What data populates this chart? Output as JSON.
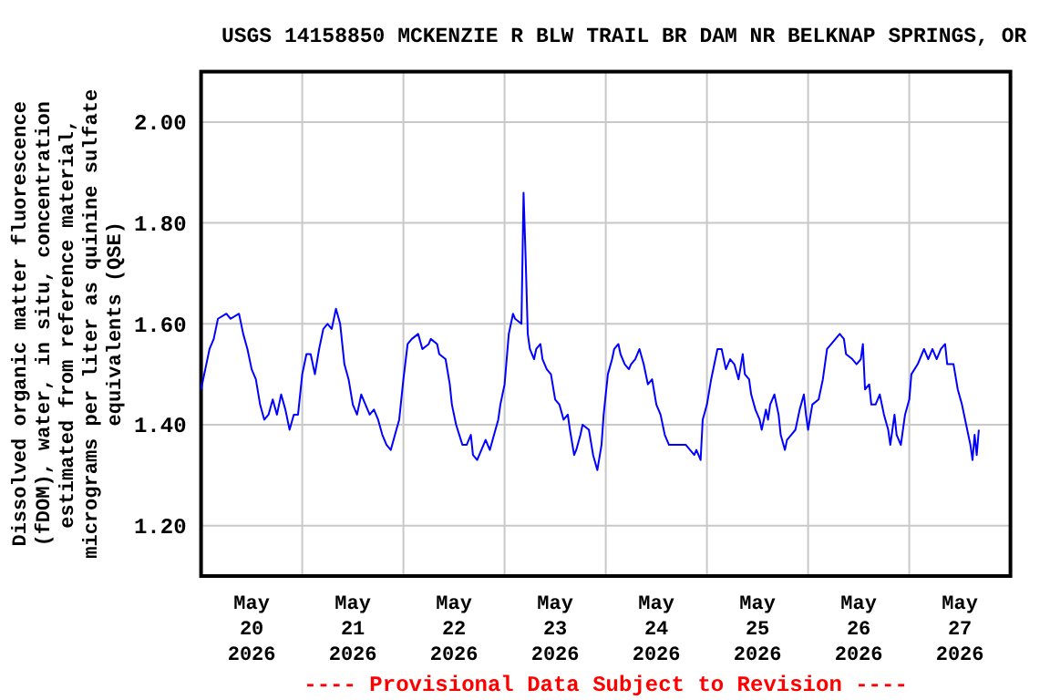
{
  "chart_data": {
    "type": "line",
    "title": "USGS 14158850 MCKENZIE R BLW TRAIL BR DAM NR BELKNAP SPRINGS, OR",
    "ylabel": "Dissolved organic matter fluorescence\n(fDOM), water, in situ, concentration\nestimated from reference material,\nmicrograms per liter as quinine sulfate\nequivalents (QSE)",
    "annotations": [
      "---- Provisional Data Subject to Revision ----"
    ],
    "xlim": [
      "2026-05-20",
      "2026-05-28"
    ],
    "xticks": [
      {
        "value": "2026-05-20T12:00",
        "label": "May\n20\n2026"
      },
      {
        "value": "2026-05-21",
        "label": null
      },
      {
        "value": "2026-05-21T12:00",
        "label": "May\n21\n2026"
      },
      {
        "value": "2026-05-22",
        "label": null
      },
      {
        "value": "2026-05-22T12:00",
        "label": "May\n22\n2026"
      },
      {
        "value": "2026-05-23",
        "label": null
      },
      {
        "value": "2026-05-23T12:00",
        "label": "May\n23\n2026"
      },
      {
        "value": "2026-05-24",
        "label": null
      },
      {
        "value": "2026-05-24T12:00",
        "label": "May\n24\n2026"
      },
      {
        "value": "2026-05-25",
        "label": null
      },
      {
        "value": "2026-05-25T12:00",
        "label": "May\n25\n2026"
      },
      {
        "value": "2026-05-26",
        "label": null
      },
      {
        "value": "2026-05-26T12:00",
        "label": "May\n26\n2026"
      },
      {
        "value": "2026-05-27",
        "label": null
      },
      {
        "value": "2026-05-27T12:00",
        "label": "May\n27\n2026"
      }
    ],
    "ylim": [
      1.1,
      2.1
    ],
    "yticks": [
      {
        "value": 1.2,
        "label": "1.20"
      },
      {
        "value": 1.4,
        "label": "1.40"
      },
      {
        "value": 1.6,
        "label": "1.60"
      },
      {
        "value": 1.8,
        "label": "1.80"
      },
      {
        "value": 2.0,
        "label": "2.00"
      }
    ],
    "grid": true,
    "marker": "none",
    "line_style": "solid",
    "x": [
      "2026-05-20T00:00",
      "2026-05-20T01:00",
      "2026-05-20T02:00",
      "2026-05-20T03:00",
      "2026-05-20T04:00",
      "2026-05-20T06:00",
      "2026-05-20T07:00",
      "2026-05-20T09:00",
      "2026-05-20T10:00",
      "2026-05-20T11:00",
      "2026-05-20T12:00",
      "2026-05-20T13:00",
      "2026-05-20T14:00",
      "2026-05-20T15:00",
      "2026-05-20T16:00",
      "2026-05-20T17:00",
      "2026-05-20T18:00",
      "2026-05-20T19:00",
      "2026-05-20T20:00",
      "2026-05-20T21:00",
      "2026-05-20T22:00",
      "2026-05-20T23:00",
      "2026-05-21T00:00",
      "2026-05-21T01:00",
      "2026-05-21T02:00",
      "2026-05-21T03:00",
      "2026-05-21T04:00",
      "2026-05-21T05:00",
      "2026-05-21T06:00",
      "2026-05-21T07:00",
      "2026-05-21T08:00",
      "2026-05-21T09:00",
      "2026-05-21T10:00",
      "2026-05-21T11:00",
      "2026-05-21T12:00",
      "2026-05-21T13:00",
      "2026-05-21T14:00",
      "2026-05-21T15:00",
      "2026-05-21T16:00",
      "2026-05-21T17:00",
      "2026-05-21T18:00",
      "2026-05-21T19:00",
      "2026-05-21T20:00",
      "2026-05-21T21:00",
      "2026-05-21T22:00",
      "2026-05-21T23:00",
      "2026-05-22T00:00",
      "2026-05-22T01:00",
      "2026-05-22T02:00",
      "2026-05-22T03:30",
      "2026-05-22T04:30",
      "2026-05-22T06:00",
      "2026-05-22T06:30",
      "2026-05-22T08:00",
      "2026-05-22T08:30",
      "2026-05-22T10:00",
      "2026-05-22T11:00",
      "2026-05-22T11:30",
      "2026-05-22T12:30",
      "2026-05-22T14:00",
      "2026-05-22T15:00",
      "2026-05-22T16:00",
      "2026-05-22T16:30",
      "2026-05-22T17:30",
      "2026-05-22T18:30",
      "2026-05-22T19:30",
      "2026-05-22T20:30",
      "2026-05-22T21:30",
      "2026-05-22T22:30",
      "2026-05-22T23:00",
      "2026-05-23T00:00",
      "2026-05-23T00:30",
      "2026-05-23T01:00",
      "2026-05-23T02:00",
      "2026-05-23T02:30",
      "2026-05-23T04:00",
      "2026-05-23T04:30",
      "2026-05-23T05:00",
      "2026-05-23T05:30",
      "2026-05-23T06:00",
      "2026-05-23T07:00",
      "2026-05-23T07:30",
      "2026-05-23T08:30",
      "2026-05-23T09:00",
      "2026-05-23T10:00",
      "2026-05-23T11:00",
      "2026-05-23T12:00",
      "2026-05-23T13:00",
      "2026-05-23T14:00",
      "2026-05-23T15:00",
      "2026-05-23T15:30",
      "2026-05-23T16:30",
      "2026-05-23T17:00",
      "2026-05-23T18:00",
      "2026-05-23T18:30",
      "2026-05-23T20:00",
      "2026-05-23T21:00",
      "2026-05-23T22:00",
      "2026-05-23T23:00",
      "2026-05-23T23:30",
      "2026-05-24T00:30",
      "2026-05-24T01:30",
      "2026-05-24T02:00",
      "2026-05-24T03:00",
      "2026-05-24T03:30",
      "2026-05-24T04:30",
      "2026-05-24T05:30",
      "2026-05-24T06:00",
      "2026-05-24T07:00",
      "2026-05-24T08:00",
      "2026-05-24T09:00",
      "2026-05-24T10:00",
      "2026-05-24T11:00",
      "2026-05-24T12:00",
      "2026-05-24T13:00",
      "2026-05-24T14:00",
      "2026-05-24T15:00",
      "2026-05-24T16:00",
      "2026-05-24T19:00",
      "2026-05-24T20:00",
      "2026-05-24T21:00",
      "2026-05-24T21:30",
      "2026-05-24T22:30",
      "2026-05-24T23:00",
      "2026-05-25T00:00",
      "2026-05-25T01:00",
      "2026-05-25T02:00",
      "2026-05-25T02:30",
      "2026-05-25T03:30",
      "2026-05-25T04:30",
      "2026-05-25T05:30",
      "2026-05-25T06:30",
      "2026-05-25T07:30",
      "2026-05-25T08:30",
      "2026-05-25T09:00",
      "2026-05-25T10:00",
      "2026-05-25T10:30",
      "2026-05-25T11:30",
      "2026-05-25T12:30",
      "2026-05-25T13:00",
      "2026-05-25T14:00",
      "2026-05-25T14:30",
      "2026-05-25T15:00",
      "2026-05-25T16:00",
      "2026-05-25T17:00",
      "2026-05-25T17:30",
      "2026-05-25T18:30",
      "2026-05-25T19:00",
      "2026-05-25T20:00",
      "2026-05-25T21:00",
      "2026-05-25T22:00",
      "2026-05-25T23:00",
      "2026-05-25T23:30",
      "2026-05-26T00:00",
      "2026-05-26T01:00",
      "2026-05-26T02:30",
      "2026-05-26T03:30",
      "2026-05-26T04:30",
      "2026-05-26T05:30",
      "2026-05-26T06:30",
      "2026-05-26T07:30",
      "2026-05-26T08:30",
      "2026-05-26T09:00",
      "2026-05-26T10:30",
      "2026-05-26T11:30",
      "2026-05-26T12:30",
      "2026-05-26T13:00",
      "2026-05-26T13:30",
      "2026-05-26T14:30",
      "2026-05-26T15:00",
      "2026-05-26T16:00",
      "2026-05-26T17:00",
      "2026-05-26T18:00",
      "2026-05-26T19:00",
      "2026-05-26T19:30",
      "2026-05-26T20:30",
      "2026-05-26T21:00",
      "2026-05-26T22:00",
      "2026-05-26T23:00",
      "2026-05-27T00:00",
      "2026-05-27T00:30",
      "2026-05-27T02:00",
      "2026-05-27T03:00",
      "2026-05-27T03:30",
      "2026-05-27T04:30",
      "2026-05-27T05:30",
      "2026-05-27T06:30",
      "2026-05-27T07:30",
      "2026-05-27T08:30",
      "2026-05-27T09:00",
      "2026-05-27T10:30",
      "2026-05-27T11:30",
      "2026-05-27T12:30",
      "2026-05-27T13:30",
      "2026-05-27T14:30",
      "2026-05-27T15:00",
      "2026-05-27T15:30",
      "2026-05-27T16:00",
      "2026-05-27T16:30"
    ],
    "series": [
      {
        "color": "#0000ff",
        "values": [
          1.47,
          1.51,
          1.55,
          1.57,
          1.61,
          1.62,
          1.61,
          1.62,
          1.58,
          1.55,
          1.51,
          1.49,
          1.44,
          1.41,
          1.42,
          1.45,
          1.42,
          1.46,
          1.43,
          1.39,
          1.42,
          1.42,
          1.5,
          1.54,
          1.54,
          1.5,
          1.55,
          1.59,
          1.6,
          1.59,
          1.63,
          1.6,
          1.52,
          1.49,
          1.44,
          1.42,
          1.46,
          1.44,
          1.42,
          1.43,
          1.41,
          1.38,
          1.36,
          1.35,
          1.38,
          1.41,
          1.49,
          1.56,
          1.57,
          1.58,
          1.55,
          1.56,
          1.57,
          1.56,
          1.54,
          1.53,
          1.48,
          1.44,
          1.4,
          1.36,
          1.36,
          1.38,
          1.34,
          1.33,
          1.35,
          1.37,
          1.35,
          1.38,
          1.41,
          1.44,
          1.48,
          1.53,
          1.58,
          1.62,
          1.61,
          1.6,
          1.86,
          1.73,
          1.58,
          1.55,
          1.53,
          1.55,
          1.56,
          1.53,
          1.51,
          1.5,
          1.45,
          1.44,
          1.41,
          1.42,
          1.39,
          1.34,
          1.35,
          1.38,
          1.4,
          1.39,
          1.34,
          1.31,
          1.36,
          1.42,
          1.5,
          1.53,
          1.55,
          1.56,
          1.54,
          1.52,
          1.51,
          1.52,
          1.53,
          1.55,
          1.52,
          1.48,
          1.49,
          1.44,
          1.42,
          1.38,
          1.36,
          1.36,
          1.36,
          1.35,
          1.34,
          1.35,
          1.33,
          1.41,
          1.44,
          1.49,
          1.53,
          1.55,
          1.55,
          1.51,
          1.53,
          1.52,
          1.49,
          1.54,
          1.5,
          1.49,
          1.46,
          1.43,
          1.41,
          1.39,
          1.43,
          1.41,
          1.44,
          1.46,
          1.42,
          1.38,
          1.35,
          1.37,
          1.38,
          1.39,
          1.43,
          1.46,
          1.42,
          1.39,
          1.44,
          1.45,
          1.49,
          1.55,
          1.56,
          1.57,
          1.58,
          1.57,
          1.54,
          1.53,
          1.52,
          1.53,
          1.56,
          1.47,
          1.48,
          1.44,
          1.44,
          1.46,
          1.42,
          1.39,
          1.36,
          1.42,
          1.38,
          1.36,
          1.42,
          1.45,
          1.5,
          1.52,
          1.54,
          1.55,
          1.53,
          1.55,
          1.53,
          1.55,
          1.56,
          1.52,
          1.52,
          1.47,
          1.44,
          1.4,
          1.36,
          1.33,
          1.38,
          1.34,
          1.39
        ]
      }
    ]
  }
}
